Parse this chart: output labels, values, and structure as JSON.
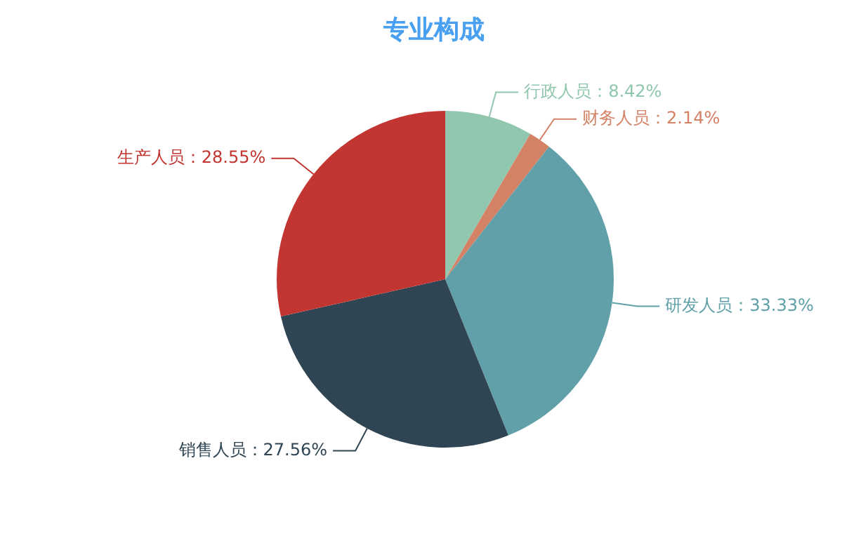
{
  "chart_data": {
    "type": "pie",
    "title": "专业构成",
    "categories": [
      "行政人员",
      "财务人员",
      "研发人员",
      "销售人员",
      "生产人员"
    ],
    "values": [
      8.42,
      2.14,
      33.33,
      27.56,
      28.55
    ],
    "value_labels": [
      "：8.42%",
      "：2.14%",
      "：33.33%",
      "：27.56%",
      "：28.55%"
    ],
    "colors": [
      "#91c7ae",
      "#d48265",
      "#61a0a8",
      "#2f4554",
      "#c23531"
    ],
    "legend": false
  }
}
